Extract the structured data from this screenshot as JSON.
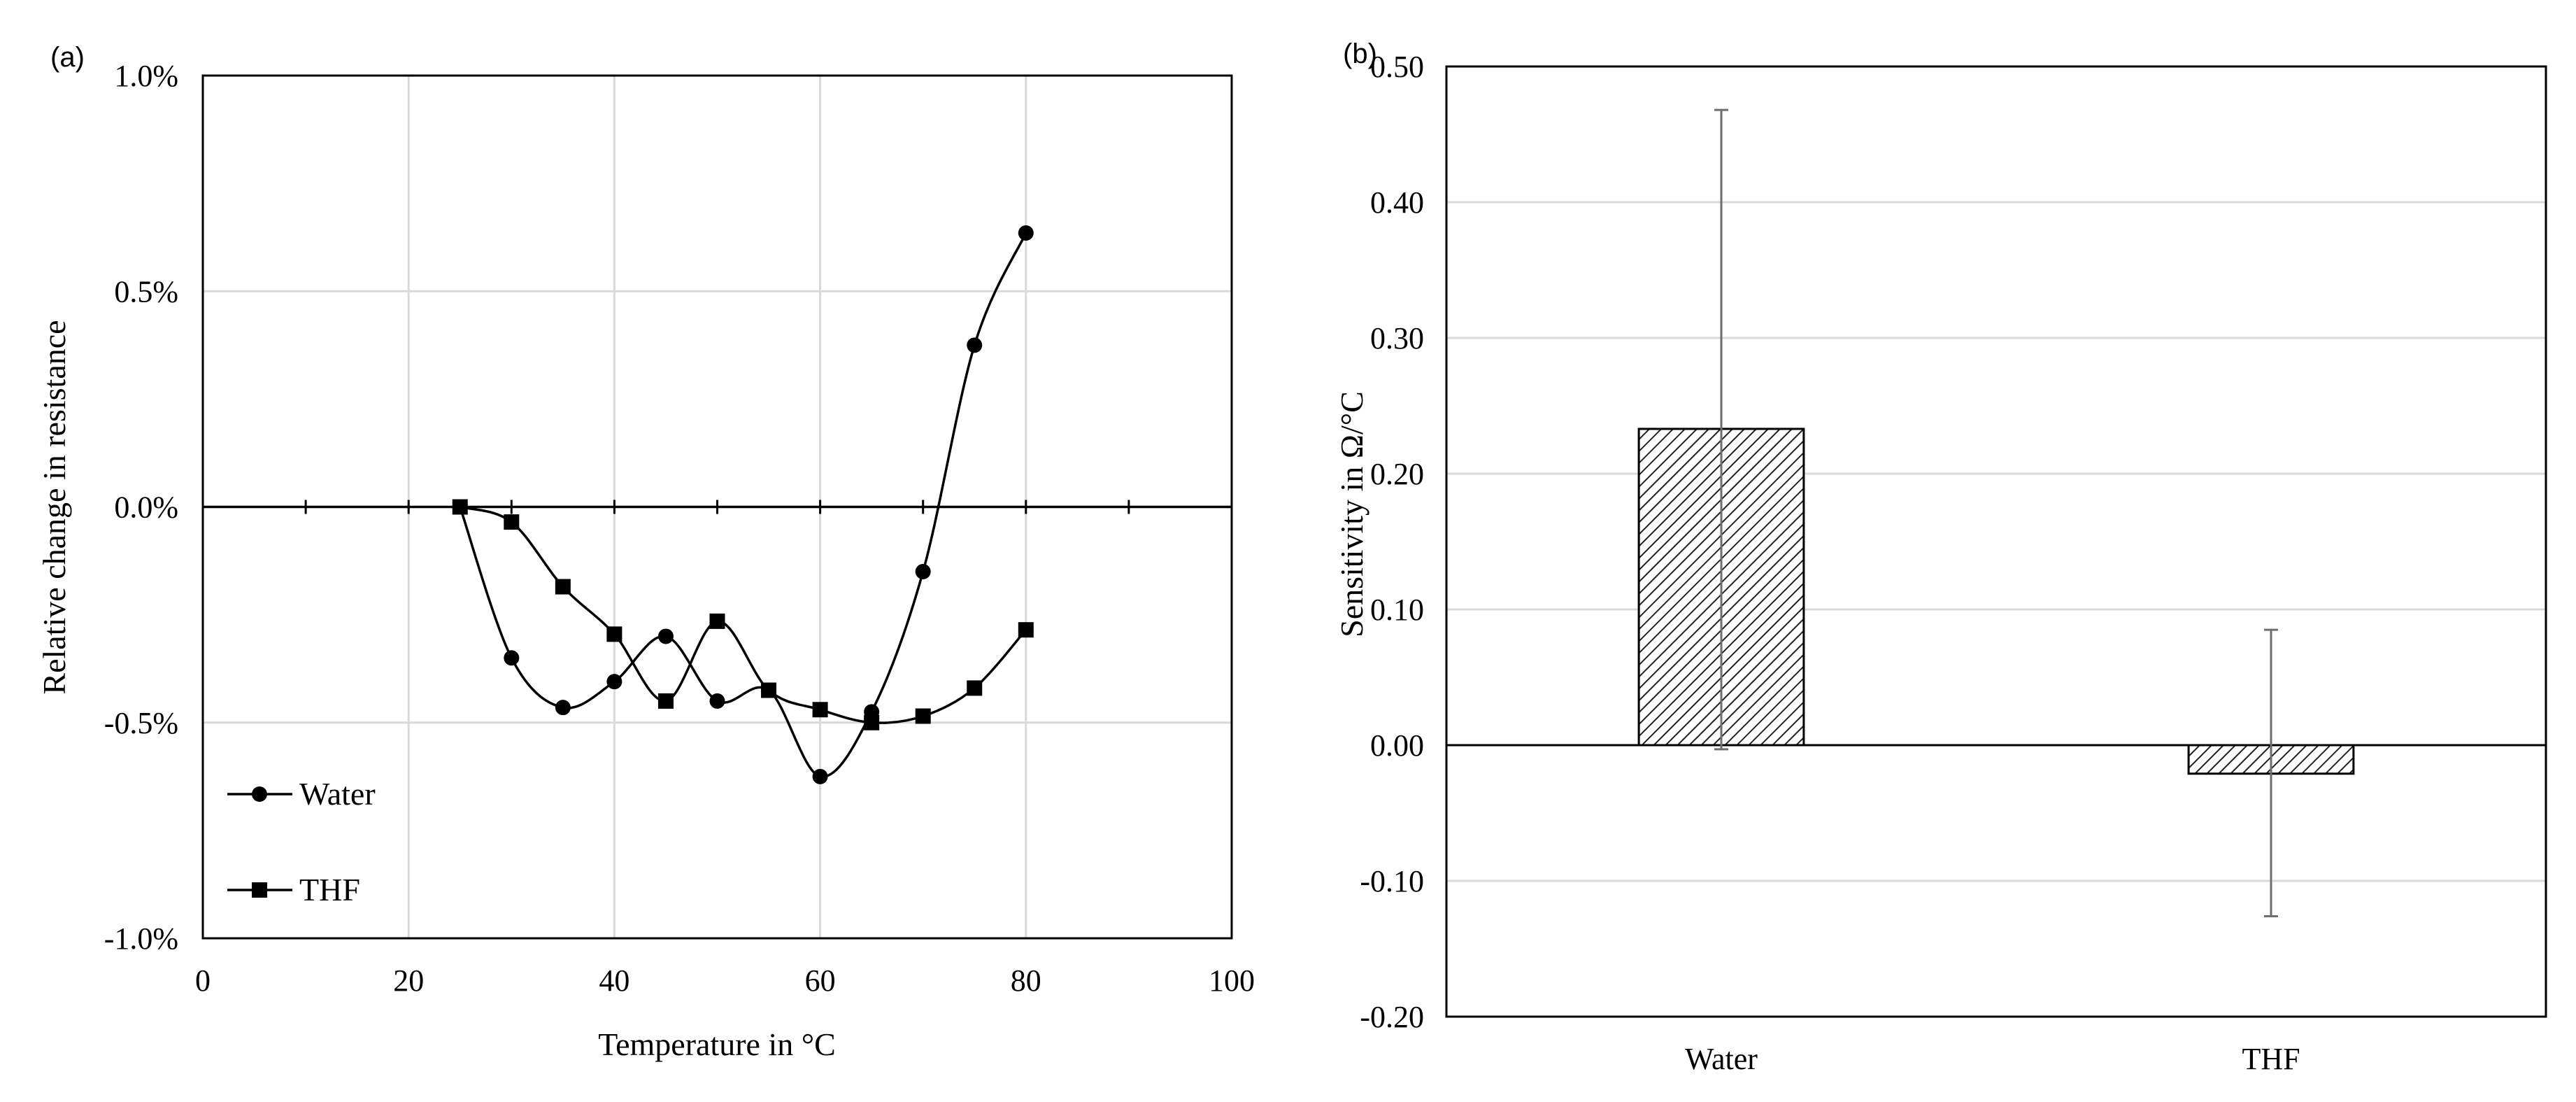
{
  "chart_data": [
    {
      "panel": "(a)",
      "type": "line",
      "xlabel": "Temperature in °C",
      "ylabel": "Relative change in resistance",
      "xlim": [
        0,
        100
      ],
      "ylim": [
        -1.0,
        1.0
      ],
      "xticks": [
        "0",
        "20",
        "40",
        "60",
        "80",
        "100"
      ],
      "yticks": [
        "-1.0%",
        "-0.5%",
        "0.0%",
        "0.5%",
        "1.0%"
      ],
      "grid": true,
      "legend": "bottom-left",
      "series": [
        {
          "name": "Water",
          "marker": "circle",
          "x": [
            25,
            30,
            35,
            40,
            45,
            50,
            55,
            60,
            65,
            70,
            75,
            80
          ],
          "y": [
            0.0,
            -0.35,
            -0.465,
            -0.405,
            -0.3,
            -0.45,
            -0.425,
            -0.625,
            -0.475,
            -0.15,
            0.375,
            0.635
          ]
        },
        {
          "name": "THF",
          "marker": "square",
          "x": [
            25,
            30,
            35,
            40,
            45,
            50,
            55,
            60,
            65,
            70,
            75,
            80
          ],
          "y": [
            0.0,
            -0.035,
            -0.185,
            -0.295,
            -0.45,
            -0.265,
            -0.425,
            -0.47,
            -0.5,
            -0.485,
            -0.42,
            -0.285
          ]
        }
      ]
    },
    {
      "panel": "(b)",
      "type": "bar",
      "ylabel": "Sensitivity in Ω/°C",
      "ylim": [
        -0.2,
        0.5
      ],
      "yticks": [
        "-0.20",
        "-0.10",
        "0.00",
        "0.10",
        "0.20",
        "0.30",
        "0.40",
        "0.50"
      ],
      "grid": true,
      "categories": [
        "Water",
        "THF"
      ],
      "values": [
        0.233,
        -0.021
      ],
      "error_upper": [
        0.468,
        0.085
      ],
      "error_lower": [
        -0.003,
        -0.126
      ]
    }
  ]
}
